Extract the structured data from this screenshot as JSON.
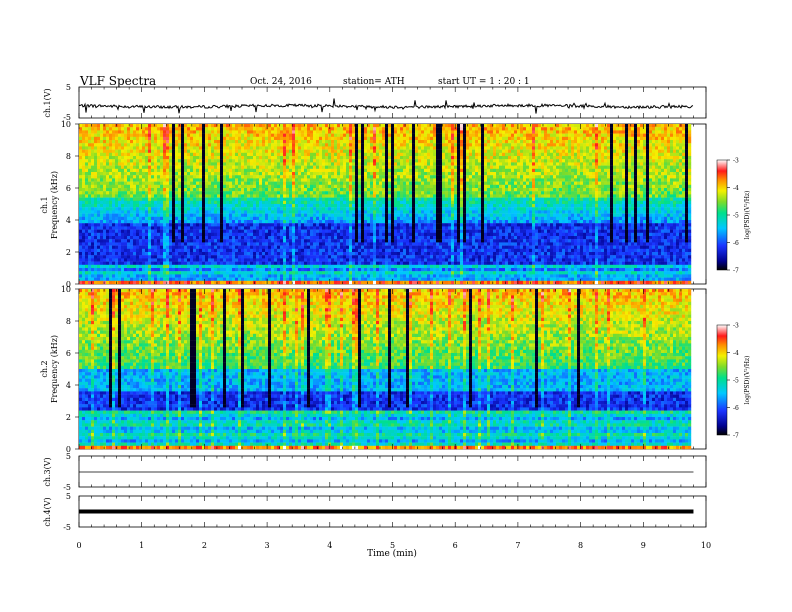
{
  "header": {
    "title": "VLF  Spectra",
    "date": "Oct. 24, 2016",
    "station": "station= ATH",
    "start": "start  UT  =   1  : 20 : 1"
  },
  "chart_data": [
    {
      "type": "line",
      "id": "ch1",
      "ylabel": "ch.1(V)",
      "ylim": [
        -5,
        5
      ],
      "yticks": [
        "5",
        "-5"
      ],
      "baseline": -1.2,
      "trace": "noisy"
    },
    {
      "type": "heatmap",
      "id": "ch1-spec",
      "ylabel_top": "ch.1",
      "ylabel": "Frequency  (kHz)",
      "ylim": [
        0,
        10
      ],
      "yticks": [
        "0",
        "2",
        "4",
        "6",
        "8",
        "10"
      ],
      "colorbar": {
        "label": "log(PSD)(V²/Hz)",
        "range": [
          -7,
          -3
        ],
        "ticks": [
          "-3",
          "-4",
          "-5",
          "-6",
          "-7"
        ]
      }
    },
    {
      "type": "heatmap",
      "id": "ch2-spec",
      "ylabel_top": "ch.2",
      "ylabel": "Frequency  (kHz)",
      "ylim": [
        0,
        10
      ],
      "yticks": [
        "0",
        "2",
        "4",
        "6",
        "8",
        "10"
      ],
      "colorbar": {
        "label": "log(PSD)(V²/Hz)",
        "range": [
          -7,
          -3
        ],
        "ticks": [
          "-3",
          "-4",
          "-5",
          "-6",
          "-7"
        ]
      }
    },
    {
      "type": "line",
      "id": "ch3",
      "ylabel": "ch.3(V)",
      "ylim": [
        -5,
        5
      ],
      "yticks": [
        "5",
        "-5"
      ],
      "baseline": 0,
      "trace": "thin"
    },
    {
      "type": "line",
      "id": "ch4",
      "ylabel": "ch.4(V)",
      "ylim": [
        -5,
        5
      ],
      "yticks": [
        "5",
        "-5"
      ],
      "baseline": 0,
      "trace": "thick"
    }
  ],
  "xaxis": {
    "label": "Time  (min)",
    "range": [
      0,
      10
    ],
    "data_end": 9.8,
    "ticks": [
      "0",
      "1",
      "2",
      "3",
      "4",
      "5",
      "6",
      "7",
      "8",
      "9",
      "10"
    ]
  }
}
